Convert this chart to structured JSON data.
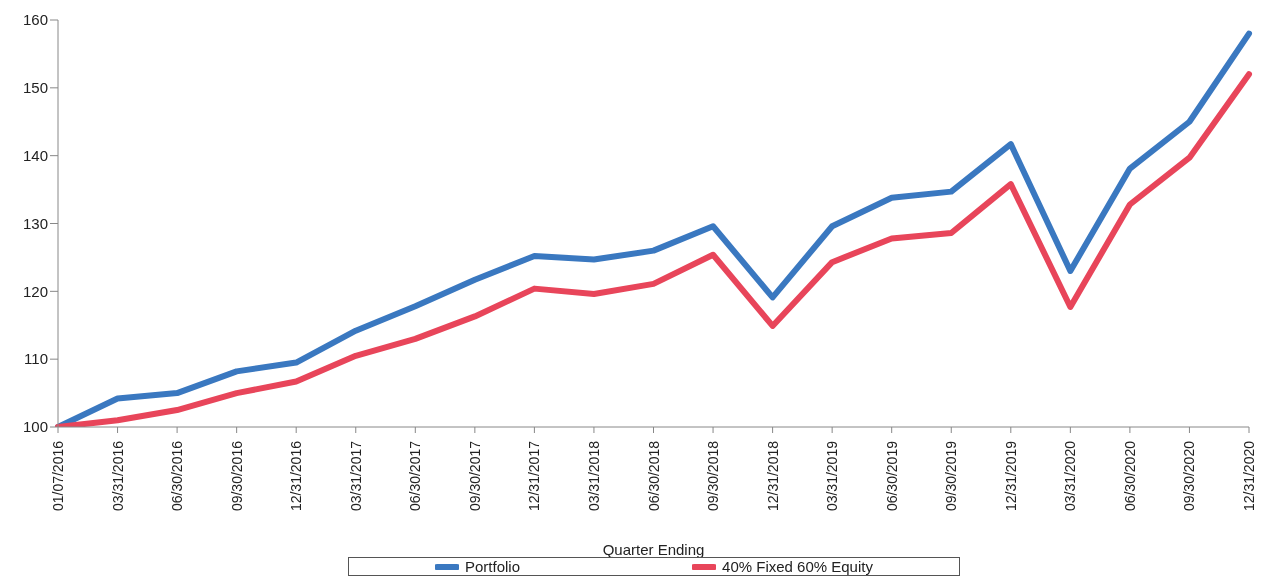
{
  "chart_data": {
    "type": "line",
    "xlabel": "Quarter Ending",
    "categories": [
      "01/07/2016",
      "03/31/2016",
      "06/30/2016",
      "09/30/2016",
      "12/31/2016",
      "03/31/2017",
      "06/30/2017",
      "09/30/2017",
      "12/31/2017",
      "03/31/2018",
      "06/30/2018",
      "09/30/2018",
      "12/31/2018",
      "03/31/2019",
      "06/30/2019",
      "09/30/2019",
      "12/31/2019",
      "03/31/2020",
      "06/30/2020",
      "09/30/2020",
      "12/31/2020"
    ],
    "series": [
      {
        "name": "Portfolio",
        "color": "#3a78c0",
        "values": [
          100,
          104.2,
          105,
          108.2,
          109.5,
          114.2,
          117.8,
          121.7,
          125.2,
          124.7,
          126,
          129.6,
          119.1,
          129.6,
          133.8,
          134.7,
          141.7,
          123,
          138.1,
          145,
          158
        ]
      },
      {
        "name": "40% Fixed 60% Equity",
        "color": "#e8455a",
        "values": [
          100,
          101,
          102.5,
          105,
          106.7,
          110.5,
          113,
          116.3,
          120.4,
          119.6,
          121.1,
          125.4,
          114.9,
          124.3,
          127.8,
          128.6,
          135.8,
          117.7,
          132.8,
          139.7,
          152
        ]
      }
    ],
    "ylim": [
      100,
      160
    ],
    "yticks": [
      100,
      110,
      120,
      130,
      140,
      150,
      160
    ],
    "grid": false,
    "legend": "bottom",
    "marker": "none",
    "line_style": "solid"
  }
}
